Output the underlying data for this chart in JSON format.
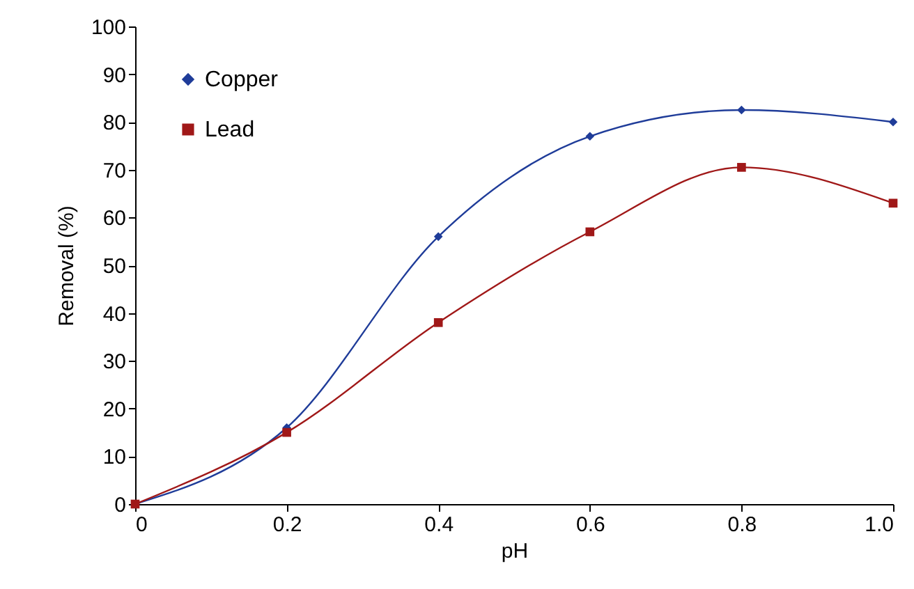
{
  "chart_data": {
    "type": "line",
    "xlabel": "pH",
    "ylabel": "Removal (%)",
    "x": [
      0,
      0.2,
      0.4,
      0.6,
      0.8,
      1.0
    ],
    "series": [
      {
        "name": "Copper",
        "color": "#1f3c99",
        "marker": "diamond",
        "values": [
          0,
          16,
          56,
          77,
          82.5,
          80
        ]
      },
      {
        "name": "Lead",
        "color": "#a01818",
        "marker": "square",
        "values": [
          0,
          15,
          38,
          57,
          70.5,
          63
        ]
      }
    ],
    "xlim": [
      0,
      1
    ],
    "xticks": [
      0,
      0.2,
      0.4,
      0.6,
      0.8,
      {
        "value": 1,
        "label": "1.0"
      }
    ],
    "ylim": [
      0,
      100
    ],
    "yticks": [
      0,
      10,
      20,
      30,
      40,
      50,
      60,
      70,
      80,
      90,
      100
    ],
    "grid": false,
    "legend": "top left",
    "line_style": "solid"
  }
}
